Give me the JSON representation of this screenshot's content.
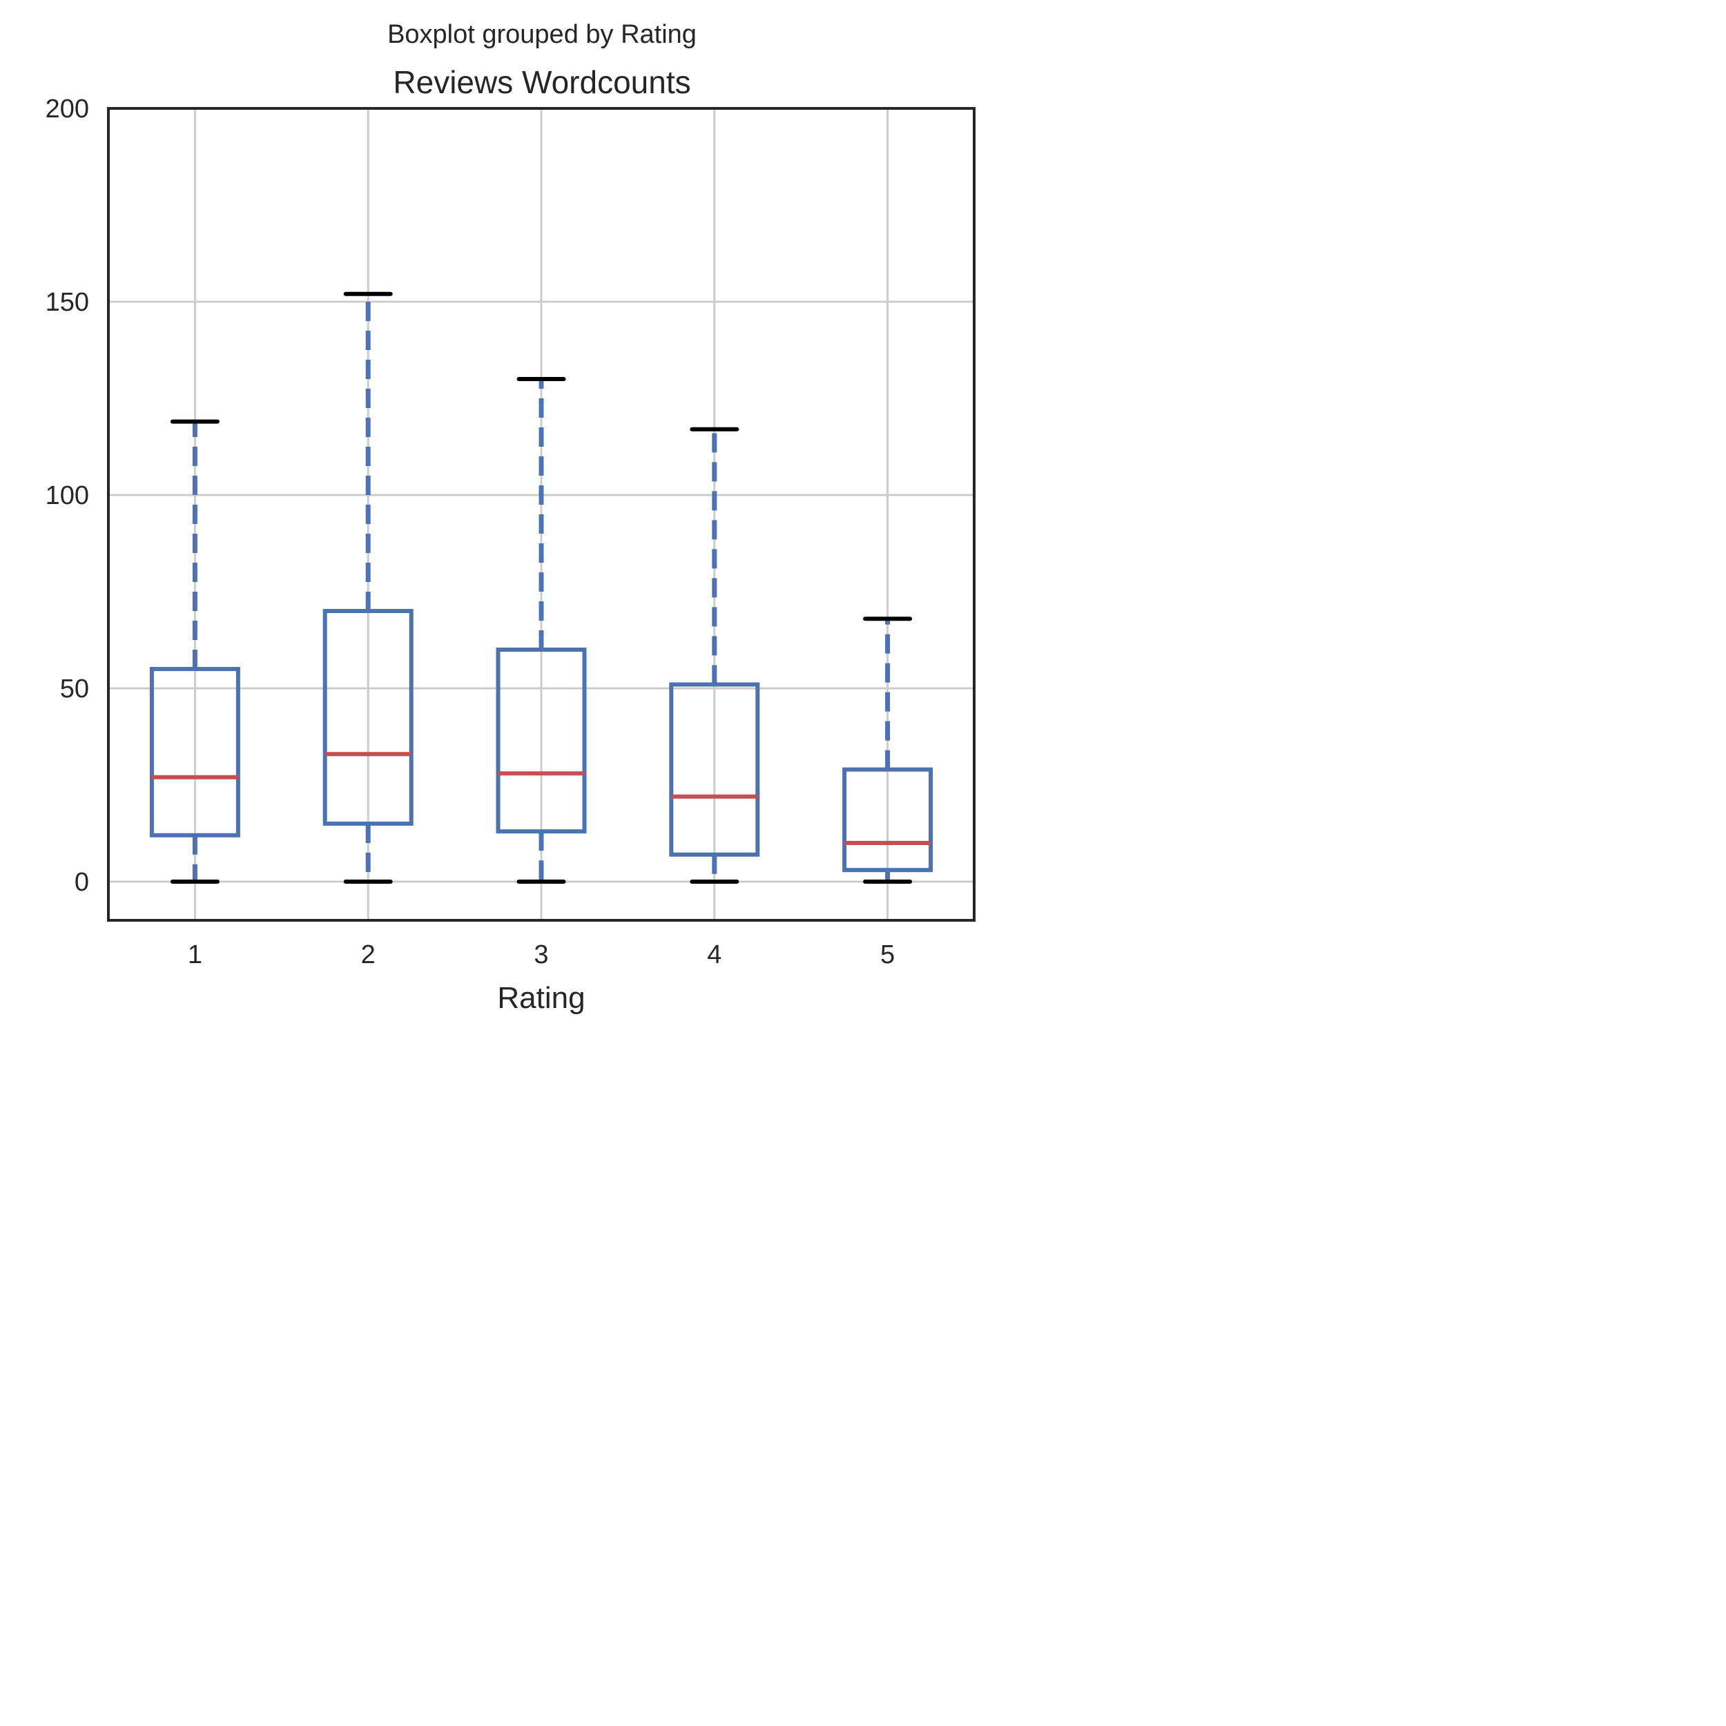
{
  "chart_data": {
    "type": "boxplot",
    "suptitle": "Boxplot grouped by Rating",
    "title": "Reviews Wordcounts",
    "xlabel": "Rating",
    "ylabel": "",
    "categories": [
      "1",
      "2",
      "3",
      "4",
      "5"
    ],
    "ylim": [
      -10,
      200
    ],
    "yticks": [
      "0",
      "50",
      "100",
      "150",
      "200"
    ],
    "grid": true,
    "boxes": [
      {
        "category": "1",
        "whisker_low": 0,
        "q1": 12,
        "median": 27,
        "q3": 55,
        "whisker_high": 119
      },
      {
        "category": "2",
        "whisker_low": 0,
        "q1": 15,
        "median": 33,
        "q3": 70,
        "whisker_high": 152
      },
      {
        "category": "3",
        "whisker_low": 0,
        "q1": 13,
        "median": 28,
        "q3": 60,
        "whisker_high": 130
      },
      {
        "category": "4",
        "whisker_low": 0,
        "q1": 7,
        "median": 22,
        "q3": 51,
        "whisker_high": 117
      },
      {
        "category": "5",
        "whisker_low": 0,
        "q1": 3,
        "median": 10,
        "q3": 29,
        "whisker_high": 68
      }
    ],
    "colors": {
      "box": "#4c72b0",
      "median": "#c44e52",
      "cap": "#000000"
    }
  }
}
